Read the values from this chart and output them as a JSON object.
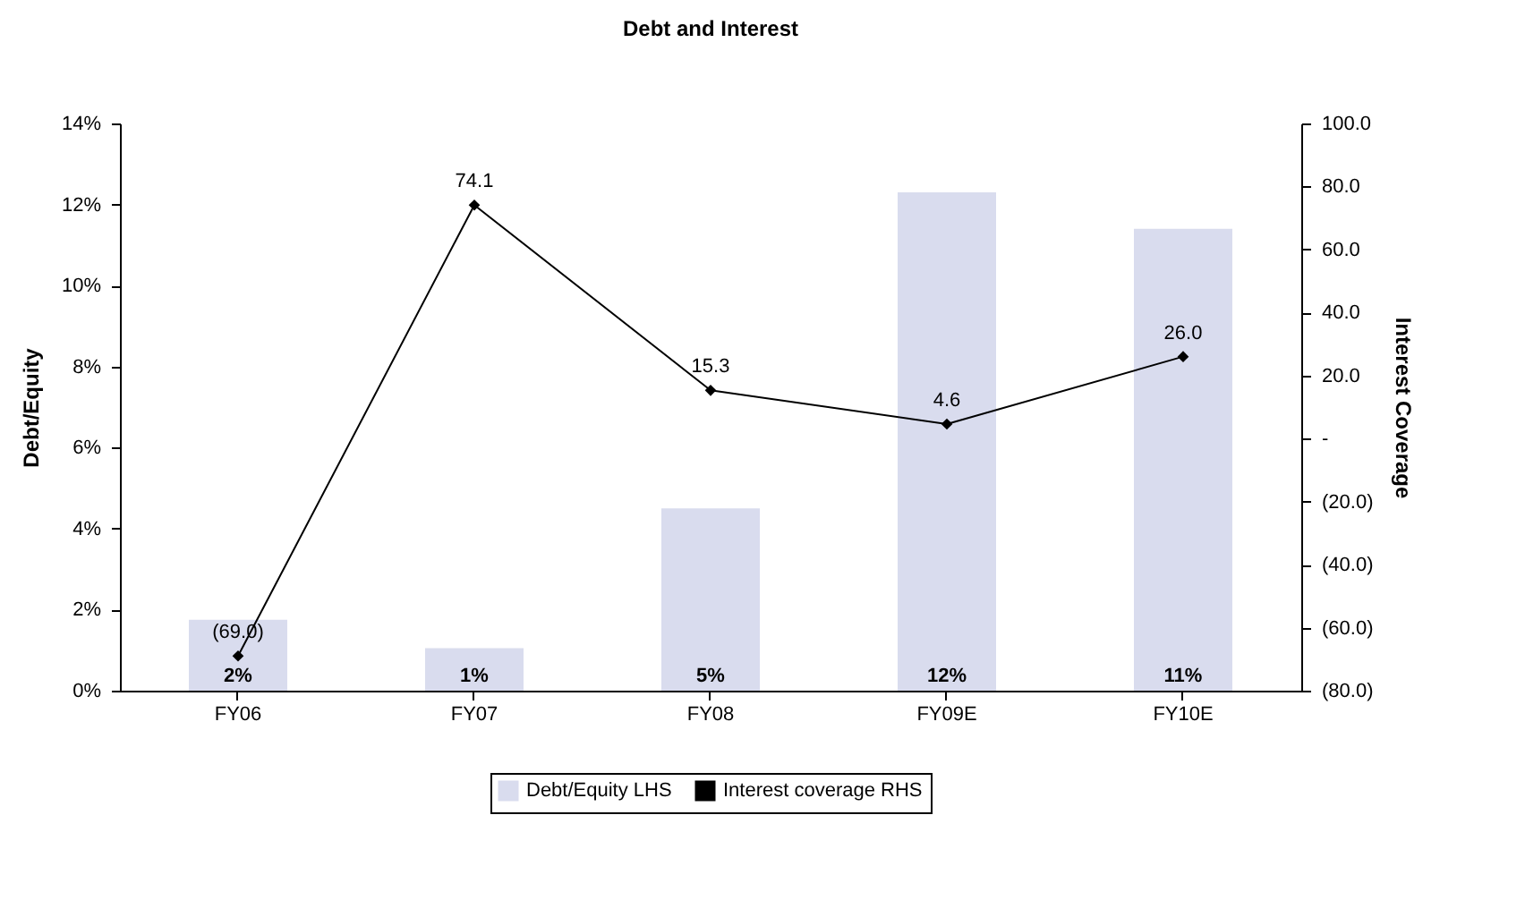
{
  "chart_data": {
    "type": "bar",
    "title": "Debt and Interest",
    "ylabel": "Debt/Equity",
    "y2label": "Interest Coverage",
    "categories": [
      "FY06",
      "FY07",
      "FY08",
      "FY09E",
      "FY10E"
    ],
    "series": [
      {
        "name": "Debt/Equity LHS",
        "color": "#d9dcee",
        "values": [
          1.75,
          1.05,
          4.5,
          12.3,
          11.4
        ],
        "value_labels": [
          "2%",
          "1%",
          "5%",
          "12%",
          "11%"
        ]
      },
      {
        "name": "Interest coverage RHS",
        "type": "line",
        "axis": "y2",
        "color": "#000000",
        "marker": "diamond",
        "values": [
          -69.0,
          74.1,
          15.3,
          4.6,
          26.0
        ],
        "value_labels": [
          "(69.0)",
          "74.1",
          "15.3",
          "4.6",
          "26.0"
        ]
      }
    ],
    "ylim": [
      0,
      14
    ],
    "yticks": [
      {
        "value": 0,
        "label": "0%"
      },
      {
        "value": 2,
        "label": "2%"
      },
      {
        "value": 4,
        "label": "4%"
      },
      {
        "value": 6,
        "label": "6%"
      },
      {
        "value": 8,
        "label": "8%"
      },
      {
        "value": 10,
        "label": "10%"
      },
      {
        "value": 12,
        "label": "12%"
      },
      {
        "value": 14,
        "label": "14%"
      }
    ],
    "y2lim": [
      -80,
      100
    ],
    "y2ticks": [
      {
        "value": -80,
        "label": "(80.0)"
      },
      {
        "value": -60,
        "label": "(60.0)"
      },
      {
        "value": -40,
        "label": "(40.0)"
      },
      {
        "value": -20,
        "label": "(20.0)"
      },
      {
        "value": 0,
        "label": "-"
      },
      {
        "value": 20,
        "label": "20.0"
      },
      {
        "value": 40,
        "label": "40.0"
      },
      {
        "value": 60,
        "label": "60.0"
      },
      {
        "value": 80,
        "label": "80.0"
      },
      {
        "value": 100,
        "label": "100.0"
      }
    ],
    "grid": false,
    "legend": "bottom"
  }
}
